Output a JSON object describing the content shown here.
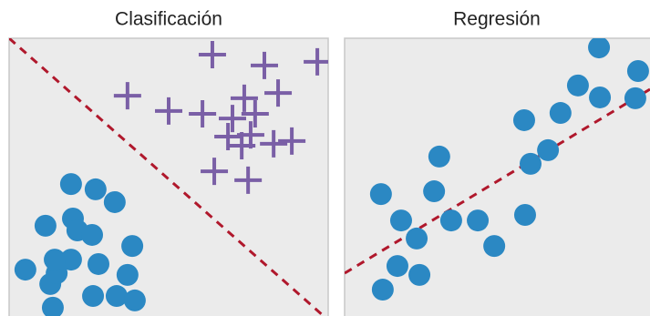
{
  "chart_data": [
    {
      "type": "scatter",
      "title": "Clasificación",
      "xlim": [
        0,
        100
      ],
      "ylim": [
        0,
        100
      ],
      "series": [
        {
          "color": "#2b88c3",
          "marker": "circle",
          "x": [
            5.1,
            12.9,
            14.9,
            13.7,
            19.4,
            27.1,
            33.1,
            11.4,
            20.0,
            21.4,
            19.4,
            26.0,
            28.0,
            38.6,
            37.1,
            26.3,
            33.7,
            39.4,
            14.3
          ],
          "y": [
            16.7,
            11.5,
            15.4,
            3.0,
            47.5,
            45.6,
            41.0,
            32.5,
            35.1,
            30.8,
            20.3,
            29.2,
            18.7,
            25.2,
            14.8,
            7.2,
            7.2,
            5.6,
            20.3
          ]
        },
        {
          "color": "#7a5fa6",
          "marker": "cross",
          "x": [
            63.7,
            80.0,
            96.6,
            37.1,
            50.0,
            60.6,
            73.7,
            84.3,
            70.0,
            77.1,
            68.6,
            75.7,
            82.9,
            88.6,
            72.9,
            64.3,
            74.9
          ],
          "y": [
            94.1,
            90.2,
            91.5,
            79.3,
            73.8,
            72.8,
            78.4,
            80.3,
            71.1,
            72.8,
            64.6,
            65.2,
            62.0,
            63.0,
            61.3,
            52.1,
            48.9
          ]
        }
      ]
    },
    {
      "type": "scatter",
      "title": "Regresión",
      "xlim": [
        0,
        100
      ],
      "ylim": [
        0,
        100
      ],
      "series": [
        {
          "color": "#2b88c3",
          "marker": "circle",
          "x": [
            11.9,
            18.5,
            23.6,
            17.3,
            24.5,
            12.5,
            31.0,
            29.3,
            34.9,
            43.6,
            49.0,
            59.1,
            58.8,
            66.6,
            60.9,
            70.7,
            76.4,
            83.3,
            83.6,
            96.1,
            95.2
          ],
          "y": [
            43.9,
            34.4,
            27.9,
            18.0,
            14.8,
            9.5,
            57.4,
            44.9,
            34.4,
            34.4,
            25.2,
            36.4,
            70.5,
            59.7,
            54.8,
            73.1,
            83.0,
            96.7,
            78.7,
            88.2,
            78.4
          ]
        }
      ]
    }
  ]
}
